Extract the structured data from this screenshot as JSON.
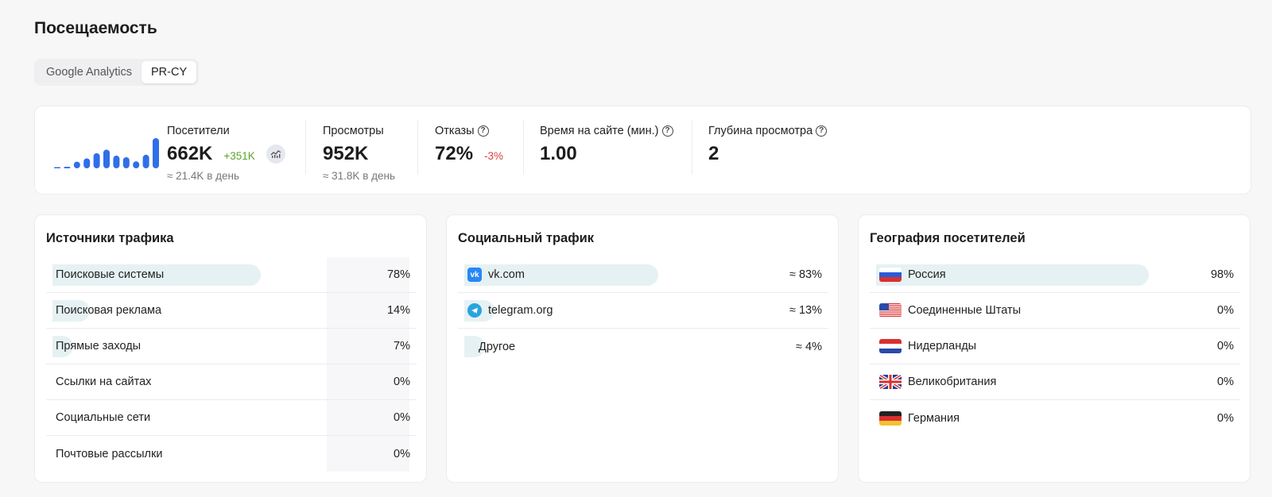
{
  "page": {
    "title": "Посещаемость"
  },
  "tabs": [
    {
      "label": "Google Analytics",
      "active": false
    },
    {
      "label": "PR-CY",
      "active": true
    }
  ],
  "stats": {
    "visitors": {
      "label": "Посетители",
      "value": "662K",
      "delta": "+351K",
      "sub": "≈ 21.4K в день",
      "trend_icon": "chart-icon"
    },
    "views": {
      "label": "Просмотры",
      "value": "952K",
      "sub": "≈ 31.8K в день"
    },
    "bounces": {
      "label": "Отказы",
      "value": "72%",
      "delta": "-3%",
      "help_icon": "?"
    },
    "time": {
      "label": "Время на сайте (мин.)",
      "value": "1.00",
      "help_icon": "?"
    },
    "depth": {
      "label": "Глубина просмотра",
      "value": "2",
      "help_icon": "?"
    },
    "sparkline": [
      0.02,
      0.05,
      0.22,
      0.33,
      0.5,
      0.62,
      0.42,
      0.37,
      0.23,
      0.45,
      1.0
    ],
    "colors": {
      "accent": "#2f6fe8",
      "up": "#5aa42a",
      "down": "#d94040"
    }
  },
  "traffic_sources": {
    "title": "Источники трафика",
    "rows": [
      {
        "label": "Поисковые системы",
        "value": "78%",
        "share": 78
      },
      {
        "label": "Поисковая реклама",
        "value": "14%",
        "share": 14
      },
      {
        "label": "Прямые заходы",
        "value": "7%",
        "share": 7
      },
      {
        "label": "Ссылки на сайтах",
        "value": "0%",
        "share": 0
      },
      {
        "label": "Социальные сети",
        "value": "0%",
        "share": 0
      },
      {
        "label": "Почтовые рассылки",
        "value": "0%",
        "share": 0
      }
    ]
  },
  "social_traffic": {
    "title": "Социальный трафик",
    "rows": [
      {
        "label": "vk.com",
        "value": "≈ 83%",
        "share": 83,
        "icon": "vk-icon"
      },
      {
        "label": "telegram.org",
        "value": "≈ 13%",
        "share": 13,
        "icon": "telegram-icon"
      },
      {
        "label": "Другое",
        "value": "≈ 4%",
        "share": 4,
        "icon": "other-icon"
      }
    ]
  },
  "geography": {
    "title": "География посетителей",
    "rows": [
      {
        "label": "Россия",
        "value": "98%",
        "share": 98,
        "icon": "flag-ru-icon"
      },
      {
        "label": "Соединенные Штаты",
        "value": "0%",
        "share": 0,
        "icon": "flag-us-icon"
      },
      {
        "label": "Нидерланды",
        "value": "0%",
        "share": 0,
        "icon": "flag-nl-icon"
      },
      {
        "label": "Великобритания",
        "value": "0%",
        "share": 0,
        "icon": "flag-gb-icon"
      },
      {
        "label": "Германия",
        "value": "0%",
        "share": 0,
        "icon": "flag-de-icon"
      }
    ]
  }
}
